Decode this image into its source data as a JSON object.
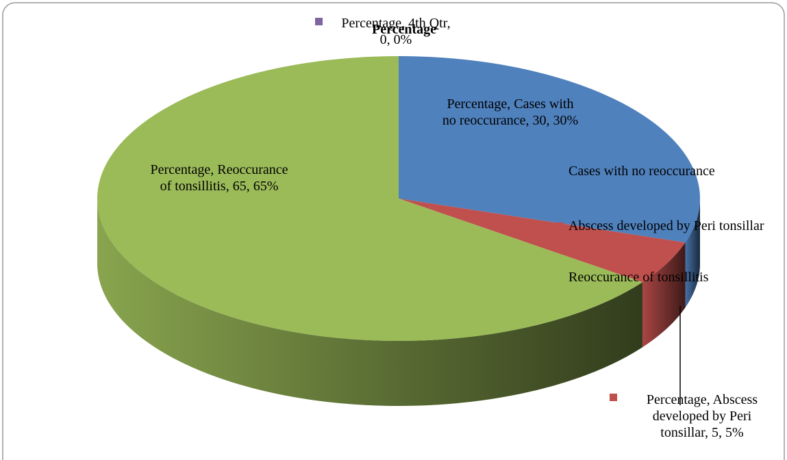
{
  "chart_data": {
    "type": "pie3d",
    "title": "Percentage",
    "categories": [
      "Cases with no reoccurance",
      "Abscess developed by Peri tonsillar",
      "Reoccurance of tonsillitis",
      "4th Qtr"
    ],
    "values": [
      30,
      5,
      65,
      0
    ],
    "value_labels": [
      "Percentage, Cases with no reoccurance, 30, 30%",
      "Percentage, Abscess developed by Peri tonsillar, 5, 5%",
      "Percentage, Reoccurance of tonsillitis, 65, 65%",
      "Percentage, 4th Qtr, 0, 0%"
    ],
    "colors": [
      "#4f81bd",
      "#c0504d",
      "#9bbb59",
      "#8064a2"
    ],
    "legend": true
  }
}
